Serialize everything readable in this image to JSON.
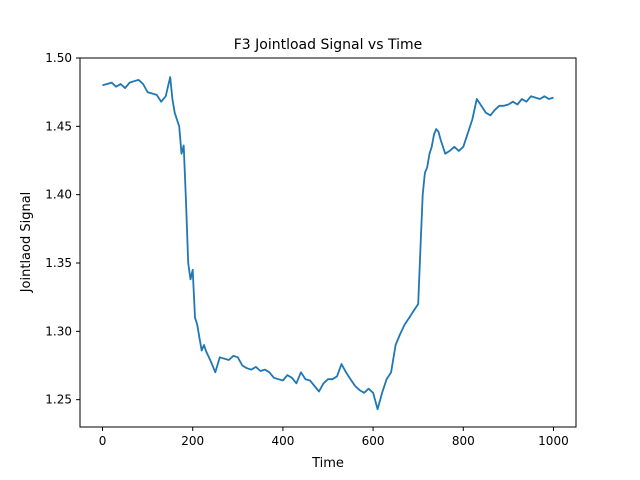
{
  "chart_data": {
    "type": "line",
    "title": "F3 Jointload Signal vs Time",
    "xlabel": "Time",
    "ylabel": "Jointlaod Signal",
    "xlim": [
      -50,
      1050
    ],
    "ylim": [
      1.23,
      1.5
    ],
    "xticks": [
      0,
      200,
      400,
      600,
      800,
      1000
    ],
    "xtick_labels": [
      "0",
      "200",
      "400",
      "600",
      "800",
      "1000"
    ],
    "yticks": [
      1.25,
      1.3,
      1.35,
      1.4,
      1.45,
      1.5
    ],
    "ytick_labels": [
      "1.25",
      "1.30",
      "1.35",
      "1.40",
      "1.45",
      "1.50"
    ],
    "grid": false,
    "series": [
      {
        "color": "#1f77b4",
        "x": [
          0,
          10,
          20,
          30,
          40,
          50,
          60,
          70,
          80,
          90,
          100,
          110,
          120,
          130,
          140,
          150,
          155,
          160,
          165,
          170,
          175,
          180,
          185,
          190,
          195,
          200,
          205,
          210,
          215,
          220,
          225,
          230,
          240,
          250,
          260,
          270,
          280,
          290,
          300,
          310,
          320,
          330,
          340,
          350,
          360,
          370,
          380,
          390,
          400,
          410,
          420,
          430,
          440,
          450,
          460,
          470,
          480,
          490,
          500,
          510,
          520,
          530,
          540,
          550,
          560,
          570,
          580,
          590,
          600,
          610,
          620,
          630,
          640,
          650,
          660,
          670,
          680,
          690,
          700,
          705,
          710,
          715,
          720,
          725,
          730,
          735,
          740,
          745,
          750,
          760,
          770,
          780,
          790,
          800,
          810,
          820,
          830,
          840,
          850,
          860,
          870,
          880,
          890,
          900,
          910,
          920,
          930,
          940,
          950,
          960,
          970,
          980,
          990,
          1000
        ],
        "y": [
          1.48,
          1.481,
          1.482,
          1.479,
          1.481,
          1.478,
          1.482,
          1.483,
          1.484,
          1.481,
          1.475,
          1.474,
          1.473,
          1.468,
          1.472,
          1.486,
          1.47,
          1.46,
          1.455,
          1.45,
          1.43,
          1.436,
          1.395,
          1.35,
          1.338,
          1.345,
          1.31,
          1.305,
          1.295,
          1.286,
          1.29,
          1.285,
          1.278,
          1.27,
          1.281,
          1.28,
          1.279,
          1.282,
          1.281,
          1.275,
          1.273,
          1.272,
          1.274,
          1.271,
          1.272,
          1.27,
          1.266,
          1.265,
          1.264,
          1.268,
          1.266,
          1.262,
          1.27,
          1.265,
          1.264,
          1.26,
          1.256,
          1.262,
          1.265,
          1.265,
          1.267,
          1.276,
          1.27,
          1.265,
          1.26,
          1.257,
          1.255,
          1.258,
          1.255,
          1.243,
          1.255,
          1.265,
          1.27,
          1.29,
          1.298,
          1.305,
          1.31,
          1.315,
          1.32,
          1.36,
          1.4,
          1.416,
          1.42,
          1.43,
          1.435,
          1.444,
          1.448,
          1.446,
          1.44,
          1.43,
          1.432,
          1.435,
          1.432,
          1.435,
          1.445,
          1.455,
          1.47,
          1.465,
          1.46,
          1.458,
          1.462,
          1.465,
          1.465,
          1.466,
          1.468,
          1.466,
          1.47,
          1.468,
          1.472,
          1.471,
          1.47,
          1.472,
          1.47,
          1.471
        ]
      }
    ]
  }
}
